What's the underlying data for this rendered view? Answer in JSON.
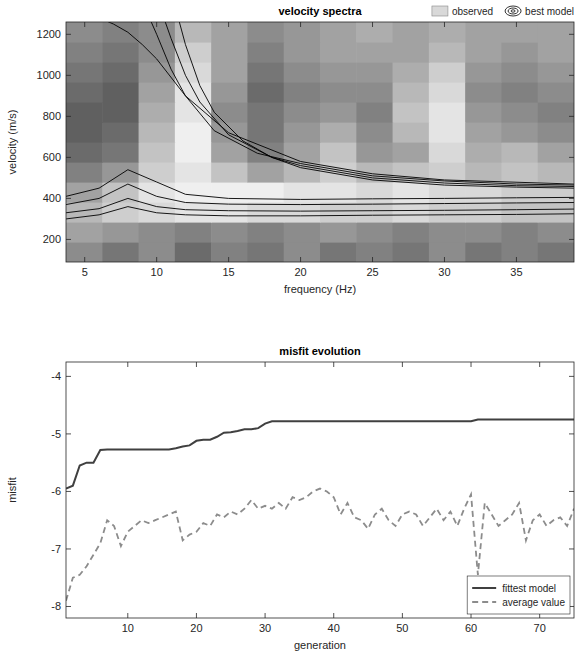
{
  "chart_data": [
    {
      "type": "heatmap",
      "title": "velocity spectra",
      "x_label": "frequency (Hz)",
      "y_label": "velocity (m/s)",
      "xlim": [
        3.7,
        39
      ],
      "xticks": [
        5,
        10,
        15,
        20,
        25,
        30,
        35
      ],
      "ylim": [
        90,
        1260
      ],
      "yticks": [
        200,
        400,
        600,
        800,
        1000,
        1200
      ],
      "legend": "top",
      "series": [
        {
          "name": "observed",
          "type": "heatmap",
          "cells": [
            [
              0.5,
              0.4,
              0.5,
              0.35,
              0.45,
              0.4,
              0.5,
              0.4,
              0.45,
              0.4,
              0.5,
              0.4,
              0.45,
              0.4
            ],
            [
              0.6,
              0.55,
              0.5,
              0.45,
              0.5,
              0.45,
              0.5,
              0.55,
              0.5,
              0.45,
              0.5,
              0.5,
              0.45,
              0.5
            ],
            [
              0.7,
              0.8,
              0.85,
              0.9,
              0.9,
              0.85,
              0.85,
              0.8,
              0.8,
              0.85,
              0.8,
              0.8,
              0.75,
              0.75
            ],
            [
              0.6,
              0.75,
              0.9,
              0.95,
              0.95,
              0.95,
              0.9,
              0.9,
              0.85,
              0.9,
              0.85,
              0.85,
              0.8,
              0.8
            ],
            [
              0.45,
              0.55,
              0.8,
              0.9,
              0.75,
              0.6,
              0.7,
              0.8,
              0.7,
              0.75,
              0.8,
              0.7,
              0.75,
              0.7
            ],
            [
              0.35,
              0.4,
              0.75,
              0.95,
              0.6,
              0.45,
              0.6,
              0.75,
              0.55,
              0.6,
              0.85,
              0.65,
              0.7,
              0.6
            ],
            [
              0.3,
              0.35,
              0.7,
              0.95,
              0.55,
              0.4,
              0.55,
              0.65,
              0.5,
              0.7,
              0.9,
              0.6,
              0.55,
              0.5
            ],
            [
              0.3,
              0.3,
              0.65,
              0.9,
              0.5,
              0.4,
              0.5,
              0.55,
              0.45,
              0.75,
              0.9,
              0.55,
              0.5,
              0.45
            ],
            [
              0.35,
              0.3,
              0.6,
              0.9,
              0.55,
              0.35,
              0.45,
              0.5,
              0.5,
              0.7,
              0.85,
              0.5,
              0.45,
              0.5
            ],
            [
              0.4,
              0.35,
              0.55,
              0.85,
              0.6,
              0.4,
              0.5,
              0.55,
              0.55,
              0.65,
              0.8,
              0.55,
              0.5,
              0.55
            ],
            [
              0.45,
              0.4,
              0.5,
              0.8,
              0.6,
              0.45,
              0.55,
              0.6,
              0.6,
              0.6,
              0.7,
              0.6,
              0.55,
              0.6
            ],
            [
              0.5,
              0.45,
              0.5,
              0.7,
              0.6,
              0.5,
              0.55,
              0.6,
              0.65,
              0.6,
              0.65,
              0.6,
              0.6,
              0.6
            ]
          ]
        },
        {
          "name": "best model",
          "type": "contour",
          "color": "#000000",
          "lines": [
            {
              "x": [
                3.7,
                6,
                8,
                10,
                12,
                15,
                20,
                25,
                30,
                35,
                39
              ],
              "values": [
                300,
                320,
                360,
                330,
                320,
                315,
                315,
                318,
                320,
                322,
                325
              ]
            },
            {
              "x": [
                3.7,
                6,
                8,
                10,
                12,
                15,
                20,
                25,
                30,
                35,
                39
              ],
              "values": [
                330,
                350,
                400,
                360,
                345,
                340,
                338,
                340,
                342,
                345,
                348
              ]
            },
            {
              "x": [
                3.7,
                6,
                8,
                10,
                12,
                15,
                20,
                25,
                30,
                35,
                39
              ],
              "values": [
                370,
                400,
                470,
                410,
                380,
                372,
                370,
                372,
                375,
                378,
                380
              ]
            },
            {
              "x": [
                3.7,
                6,
                8,
                10,
                12,
                15,
                20,
                25,
                30,
                35,
                39
              ],
              "values": [
                410,
                450,
                540,
                480,
                420,
                400,
                395,
                398,
                400,
                403,
                405
              ]
            },
            {
              "x": [
                11.5,
                12,
                13,
                14,
                16,
                18,
                20,
                25,
                30,
                35,
                39
              ],
              "values": [
                1280,
                1150,
                950,
                820,
                680,
                600,
                550,
                490,
                465,
                455,
                450
              ]
            },
            {
              "x": [
                10.5,
                11,
                12,
                13,
                15,
                18,
                20,
                25,
                30,
                35,
                39
              ],
              "values": [
                1280,
                1180,
                1000,
                870,
                710,
                600,
                560,
                500,
                475,
                462,
                458
              ]
            },
            {
              "x": [
                9.5,
                10,
                11,
                12,
                14,
                17,
                20,
                25,
                30,
                35,
                39
              ],
              "values": [
                1280,
                1200,
                1030,
                900,
                730,
                620,
                570,
                510,
                485,
                470,
                465
              ]
            },
            {
              "x": [
                6,
                7,
                8,
                9,
                10,
                12,
                15,
                20,
                25,
                30,
                39
              ],
              "values": [
                1280,
                1250,
                1210,
                1150,
                1080,
                900,
                720,
                580,
                520,
                490,
                470
              ]
            }
          ]
        }
      ]
    },
    {
      "type": "line",
      "title": "misfit evolution",
      "x_label": "generation",
      "y_label": "misfit",
      "x": [
        1,
        2,
        3,
        4,
        5,
        6,
        7,
        8,
        9,
        10,
        11,
        12,
        13,
        14,
        15,
        16,
        17,
        18,
        19,
        20,
        21,
        22,
        23,
        24,
        25,
        26,
        27,
        28,
        29,
        30,
        31,
        32,
        33,
        34,
        35,
        36,
        37,
        38,
        39,
        40,
        41,
        42,
        43,
        44,
        45,
        46,
        47,
        48,
        49,
        50,
        51,
        52,
        53,
        54,
        55,
        56,
        57,
        58,
        59,
        60,
        61,
        62,
        63,
        64,
        65,
        66,
        67,
        68,
        69,
        70,
        71,
        72,
        73,
        74,
        75
      ],
      "xlim": [
        1,
        75
      ],
      "xticks": [
        10,
        20,
        30,
        40,
        50,
        60,
        70
      ],
      "ylim": [
        -8.2,
        -3.75
      ],
      "yticks": [
        -8,
        -7,
        -6,
        -5,
        -4
      ],
      "legend": "lower right",
      "series": [
        {
          "name": "fittest model",
          "color": "#404040",
          "line_style": "solid",
          "values": [
            -5.95,
            -5.9,
            -5.55,
            -5.5,
            -5.5,
            -5.28,
            -5.27,
            -5.27,
            -5.27,
            -5.27,
            -5.27,
            -5.27,
            -5.27,
            -5.27,
            -5.27,
            -5.27,
            -5.25,
            -5.22,
            -5.2,
            -5.12,
            -5.1,
            -5.1,
            -5.05,
            -4.98,
            -4.97,
            -4.95,
            -4.92,
            -4.92,
            -4.9,
            -4.82,
            -4.78,
            -4.78,
            -4.78,
            -4.78,
            -4.78,
            -4.78,
            -4.78,
            -4.78,
            -4.78,
            -4.78,
            -4.78,
            -4.78,
            -4.78,
            -4.78,
            -4.78,
            -4.78,
            -4.78,
            -4.78,
            -4.78,
            -4.78,
            -4.78,
            -4.78,
            -4.78,
            -4.78,
            -4.78,
            -4.78,
            -4.78,
            -4.78,
            -4.78,
            -4.78,
            -4.75,
            -4.75,
            -4.75,
            -4.75,
            -4.75,
            -4.75,
            -4.75,
            -4.75,
            -4.75,
            -4.75,
            -4.75,
            -4.75,
            -4.75,
            -4.75,
            -4.75
          ]
        },
        {
          "name": "average value",
          "color": "#8c8c8c",
          "line_style": "dashed",
          "values": [
            -7.9,
            -7.5,
            -7.45,
            -7.3,
            -7.1,
            -6.9,
            -6.5,
            -6.6,
            -6.95,
            -6.7,
            -6.6,
            -6.5,
            -6.55,
            -6.5,
            -6.45,
            -6.4,
            -6.35,
            -6.85,
            -6.75,
            -6.7,
            -6.55,
            -6.6,
            -6.4,
            -6.45,
            -6.35,
            -6.4,
            -6.3,
            -6.15,
            -6.3,
            -6.25,
            -6.3,
            -6.2,
            -6.3,
            -6.1,
            -6.15,
            -6.1,
            -6.0,
            -5.95,
            -6.0,
            -6.1,
            -6.4,
            -6.2,
            -6.45,
            -6.5,
            -6.65,
            -6.4,
            -6.3,
            -6.5,
            -6.6,
            -6.4,
            -6.35,
            -6.4,
            -6.6,
            -6.45,
            -6.3,
            -6.5,
            -6.35,
            -6.6,
            -6.3,
            -6.05,
            -7.45,
            -6.2,
            -6.4,
            -6.6,
            -6.5,
            -6.4,
            -6.2,
            -6.85,
            -6.5,
            -6.4,
            -6.6,
            -6.5,
            -6.45,
            -6.6,
            -6.3
          ]
        }
      ]
    }
  ]
}
